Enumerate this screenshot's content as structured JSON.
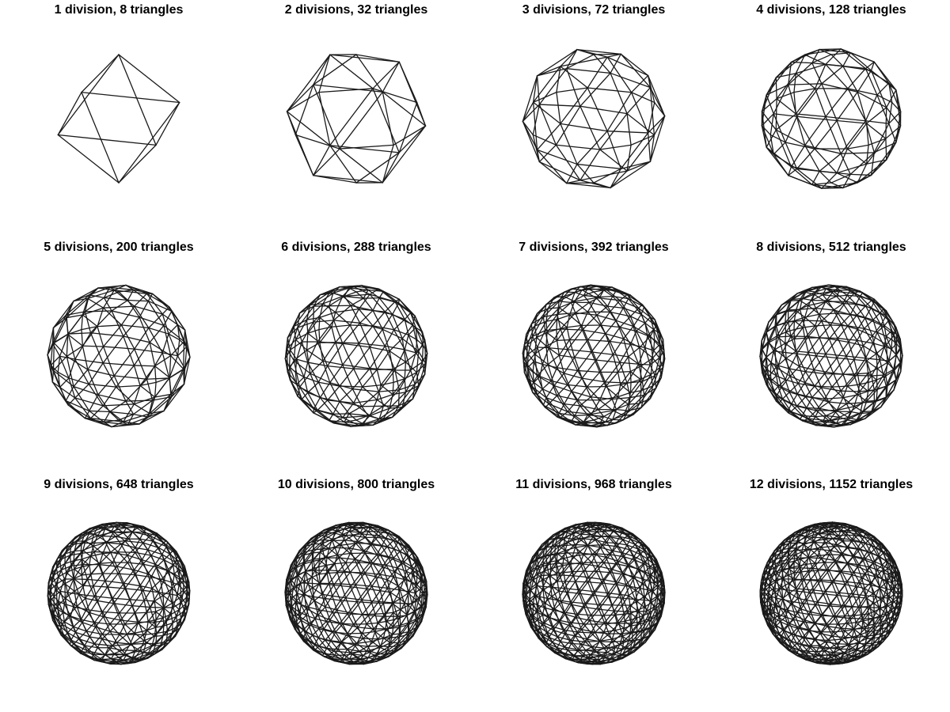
{
  "figure": {
    "panels": [
      {
        "divisions": 1,
        "triangles": 8,
        "title": "1 division, 8 triangles"
      },
      {
        "divisions": 2,
        "triangles": 32,
        "title": "2 divisions, 32 triangles"
      },
      {
        "divisions": 3,
        "triangles": 72,
        "title": "3 divisions, 72 triangles"
      },
      {
        "divisions": 4,
        "triangles": 128,
        "title": "4 divisions, 128 triangles"
      },
      {
        "divisions": 5,
        "triangles": 200,
        "title": "5 divisions, 200 triangles"
      },
      {
        "divisions": 6,
        "triangles": 288,
        "title": "6 divisions, 288 triangles"
      },
      {
        "divisions": 7,
        "triangles": 392,
        "title": "7 divisions, 392 triangles"
      },
      {
        "divisions": 8,
        "triangles": 512,
        "title": "8 divisions, 512 triangles"
      },
      {
        "divisions": 9,
        "triangles": 648,
        "title": "9 divisions, 648 triangles"
      },
      {
        "divisions": 10,
        "triangles": 800,
        "title": "10 divisions, 800 triangles"
      },
      {
        "divisions": 11,
        "triangles": 968,
        "title": "11 divisions, 968 triangles"
      },
      {
        "divisions": 12,
        "triangles": 1152,
        "title": "12 divisions, 1152 triangles"
      }
    ],
    "line_color": "#1a1a1a",
    "highlight_color": "#cfcfcf",
    "background": "#ffffff"
  }
}
